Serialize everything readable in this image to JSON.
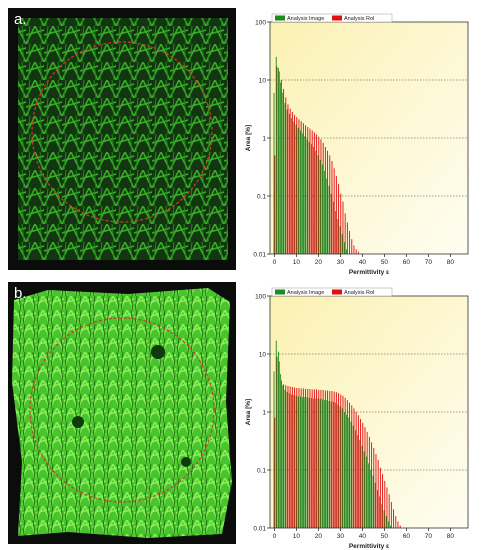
{
  "panels": [
    {
      "label": "a.",
      "texture": "sparse",
      "fill": "#2fae22"
    },
    {
      "label": "b.",
      "texture": "dense",
      "fill": "#5ee03a"
    }
  ],
  "colors": {
    "analysis_image": "#1f8b1f",
    "analysis_roi": "#e01010",
    "roi_circle": "#d23a2a",
    "plot_bg_top": "#fbf1b2",
    "plot_bg_bottom": "#fffdf2"
  },
  "chart_data": [
    {
      "type": "bar",
      "title": "",
      "xlabel": "Permittivity ε",
      "ylabel": "Area [%]",
      "x_scale": "linear",
      "y_scale": "log",
      "xlim": [
        -2,
        88
      ],
      "ylim": [
        0.01,
        100
      ],
      "x_ticks": [
        0,
        10,
        20,
        30,
        40,
        50,
        60,
        70,
        80
      ],
      "y_ticks": [
        0.01,
        0.1,
        1,
        10,
        100
      ],
      "y_tick_labels": [
        "0.01",
        "0.1",
        "1",
        "10",
        "100"
      ],
      "grid": "horizontal dotted",
      "legend": "top-left",
      "x": [
        0,
        1,
        2,
        3,
        4,
        5,
        6,
        7,
        8,
        9,
        10,
        11,
        12,
        13,
        14,
        15,
        16,
        17,
        18,
        19,
        20,
        21,
        22,
        23,
        24,
        25,
        26,
        27,
        28,
        29,
        30,
        31,
        32,
        33,
        34,
        35,
        36,
        37,
        38,
        39
      ],
      "series": [
        {
          "name": "Analysis Image",
          "values": [
            6,
            25,
            16,
            9,
            6,
            4,
            3.1,
            2.6,
            2.2,
            1.9,
            1.7,
            1.5,
            1.35,
            1.2,
            1.07,
            0.95,
            0.85,
            0.78,
            0.7,
            0.6,
            0.5,
            0.42,
            0.35,
            0.27,
            0.2,
            0.15,
            0.11,
            0.08,
            0.055,
            0.04,
            0.03,
            0.022,
            0.016,
            0.012,
            0.01,
            0,
            0,
            0,
            0,
            0
          ]
        },
        {
          "name": "Analysis RoI",
          "values": [
            0.5,
            17,
            14,
            10,
            7,
            5,
            3.8,
            3.2,
            2.8,
            2.5,
            2.3,
            2.1,
            1.95,
            1.8,
            1.65,
            1.55,
            1.45,
            1.35,
            1.25,
            1.15,
            1.05,
            0.95,
            0.82,
            0.7,
            0.6,
            0.5,
            0.4,
            0.3,
            0.22,
            0.16,
            0.11,
            0.08,
            0.05,
            0.035,
            0.025,
            0.018,
            0.014,
            0.012,
            0.011,
            0.01
          ]
        }
      ]
    },
    {
      "type": "bar",
      "title": "",
      "xlabel": "Permittivity ε",
      "ylabel": "Area [%]",
      "x_scale": "linear",
      "y_scale": "log",
      "xlim": [
        -2,
        88
      ],
      "ylim": [
        0.01,
        100
      ],
      "x_ticks": [
        0,
        10,
        20,
        30,
        40,
        50,
        60,
        70,
        80
      ],
      "y_ticks": [
        0.01,
        0.1,
        1,
        10,
        100
      ],
      "y_tick_labels": [
        "0.01",
        "0.1",
        "1",
        "10",
        "100"
      ],
      "grid": "horizontal dotted",
      "legend": "top-left",
      "x": [
        0,
        1,
        2,
        3,
        4,
        5,
        6,
        7,
        8,
        9,
        10,
        11,
        12,
        13,
        14,
        15,
        16,
        17,
        18,
        19,
        20,
        21,
        22,
        23,
        24,
        25,
        26,
        27,
        28,
        29,
        30,
        31,
        32,
        33,
        34,
        35,
        36,
        37,
        38,
        39,
        40,
        41,
        42,
        43,
        44,
        45,
        46,
        47,
        48,
        49,
        50,
        51,
        52,
        53,
        54,
        55,
        56,
        57,
        58
      ],
      "series": [
        {
          "name": "Analysis Image",
          "values": [
            5,
            17,
            11,
            4.5,
            2.9,
            2.4,
            2.2,
            2.1,
            2.0,
            1.95,
            1.9,
            1.85,
            1.85,
            1.8,
            1.8,
            1.8,
            1.75,
            1.75,
            1.7,
            1.7,
            1.7,
            1.7,
            1.65,
            1.6,
            1.6,
            1.55,
            1.5,
            1.5,
            1.45,
            1.35,
            1.25,
            1.15,
            1.0,
            0.9,
            0.8,
            0.68,
            0.58,
            0.48,
            0.4,
            0.33,
            0.26,
            0.21,
            0.17,
            0.13,
            0.1,
            0.08,
            0.06,
            0.045,
            0.035,
            0.026,
            0.02,
            0.016,
            0.013,
            0.011,
            0.01,
            0,
            0,
            0,
            0
          ]
        },
        {
          "name": "Analysis RoI",
          "values": [
            0.8,
            9,
            7.5,
            3.5,
            3.0,
            2.9,
            2.8,
            2.75,
            2.7,
            2.65,
            2.6,
            2.6,
            2.55,
            2.55,
            2.5,
            2.5,
            2.5,
            2.45,
            2.45,
            2.45,
            2.4,
            2.4,
            2.4,
            2.35,
            2.35,
            2.3,
            2.3,
            2.25,
            2.2,
            2.1,
            2.0,
            1.9,
            1.75,
            1.6,
            1.45,
            1.3,
            1.15,
            1.0,
            0.88,
            0.76,
            0.65,
            0.55,
            0.45,
            0.37,
            0.3,
            0.24,
            0.19,
            0.15,
            0.11,
            0.085,
            0.065,
            0.05,
            0.038,
            0.028,
            0.021,
            0.016,
            0.013,
            0.011,
            0.01
          ]
        }
      ]
    }
  ]
}
